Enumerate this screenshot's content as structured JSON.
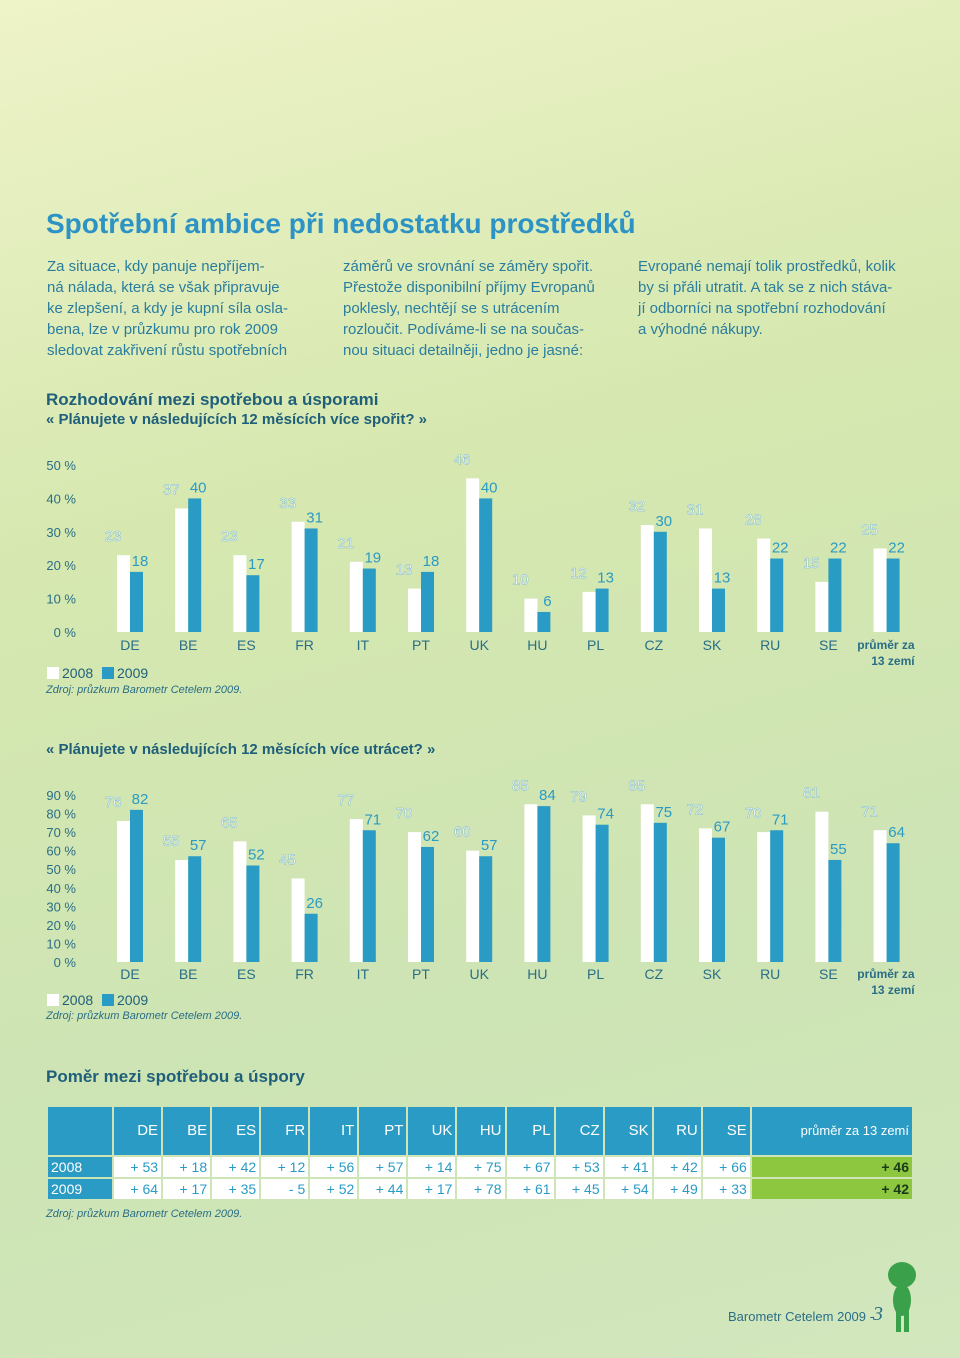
{
  "title": "Spotřební ambice při nedostatku prostředků",
  "intro": [
    [
      "Za situace, kdy panuje nepříjem-",
      "ná nálada, která se však připravuje",
      "ke zlepšení, a kdy je kupní síla osla-",
      "bena, lze v průzkumu pro rok 2009",
      "sledovat zakřivení růstu spotřebních"
    ],
    [
      "záměrů ve srovnání se záměry spořit.",
      "Přestože disponibilní příjmy Evropanů",
      "poklesly, nechtějí se s utrácením",
      "rozloučit. Podíváme-li se na součas-",
      "nou situaci detailněji, jedno je jasné:"
    ],
    [
      "Evropané nemají tolik prostředků, kolik",
      "by si přáli utratit. A tak se z nich stáva-",
      "jí odborníci na spotřební rozhodování",
      "a výhodné nákupy."
    ]
  ],
  "chart_data": [
    {
      "type": "bar",
      "title": "Rozhodování mezi spotřebou a úsporami",
      "subtitle": "« Plánujete v následujících 12 měsících více spořit? »",
      "categories": [
        "DE",
        "BE",
        "ES",
        "FR",
        "IT",
        "PT",
        "UK",
        "HU",
        "PL",
        "CZ",
        "SK",
        "RU",
        "SE",
        "průměr za 13 zemí"
      ],
      "series": [
        {
          "name": "2008",
          "color": "#ffffff",
          "values": [
            23,
            37,
            23,
            33,
            21,
            13,
            46,
            10,
            12,
            32,
            31,
            28,
            15,
            25
          ]
        },
        {
          "name": "2009",
          "color": "#2a9bc4",
          "values": [
            18,
            40,
            17,
            31,
            19,
            18,
            40,
            6,
            13,
            30,
            13,
            22,
            22,
            22
          ]
        }
      ],
      "ylim": [
        0,
        50
      ],
      "yticks": [
        {
          "value": 0,
          "label": "0 %"
        },
        {
          "value": 10,
          "label": "10 %"
        },
        {
          "value": 20,
          "label": "20 %"
        },
        {
          "value": 30,
          "label": "30 %"
        },
        {
          "value": 40,
          "label": "40 %"
        },
        {
          "value": 50,
          "label": "50 %"
        }
      ],
      "source": "Zdroj: průzkum Barometr Cetelem 2009."
    },
    {
      "type": "bar",
      "title": "« Plánujete v následujících 12 měsících více utrácet? »",
      "categories": [
        "DE",
        "BE",
        "ES",
        "FR",
        "IT",
        "PT",
        "UK",
        "HU",
        "PL",
        "CZ",
        "SK",
        "RU",
        "SE",
        "průměr za 13 zemí"
      ],
      "series": [
        {
          "name": "2008",
          "color": "#ffffff",
          "values": [
            76,
            55,
            65,
            45,
            77,
            70,
            60,
            85,
            79,
            85,
            72,
            70,
            81,
            71
          ]
        },
        {
          "name": "2009",
          "color": "#2a9bc4",
          "values": [
            82,
            57,
            52,
            26,
            71,
            62,
            57,
            84,
            74,
            75,
            67,
            71,
            55,
            64
          ]
        }
      ],
      "ylim": [
        0,
        90
      ],
      "yticks": [
        {
          "value": 0,
          "label": "0 %"
        },
        {
          "value": 10,
          "label": "10 %"
        },
        {
          "value": 20,
          "label": "20 %"
        },
        {
          "value": 30,
          "label": "30 %"
        },
        {
          "value": 40,
          "label": "40 %"
        },
        {
          "value": 50,
          "label": "50 %"
        },
        {
          "value": 60,
          "label": "60 %"
        },
        {
          "value": 70,
          "label": "70 %"
        },
        {
          "value": 80,
          "label": "80 %"
        },
        {
          "value": 90,
          "label": "90 %"
        }
      ],
      "source": "Zdroj: průzkum Barometr Cetelem 2009."
    }
  ],
  "table": {
    "title": "Poměr mezi spotřebou a úspory",
    "header": [
      "DE",
      "BE",
      "ES",
      "FR",
      "IT",
      "PT",
      "UK",
      "HU",
      "PL",
      "CZ",
      "SK",
      "RU",
      "SE",
      "průměr za 13 zemí"
    ],
    "rows": [
      {
        "label": "2008",
        "cells": [
          "+ 53",
          "+ 18",
          "+ 42",
          "+ 12",
          "+ 56",
          "+ 57",
          "+ 14",
          "+ 75",
          "+ 67",
          "+ 53",
          "+ 41",
          "+ 42",
          "+ 66",
          "+ 46"
        ]
      },
      {
        "label": "2009",
        "cells": [
          "+ 64",
          "+ 17",
          "+ 35",
          "- 5",
          "+ 52",
          "+ 44",
          "+ 17",
          "+ 78",
          "+ 61",
          "+ 45",
          "+ 54",
          "+ 49",
          "+ 33",
          "+ 42"
        ]
      }
    ],
    "source": "Zdroj: průzkum Barometr Cetelem 2009."
  },
  "footer": {
    "text": "Barometr Cetelem 2009 -",
    "page": "3"
  }
}
